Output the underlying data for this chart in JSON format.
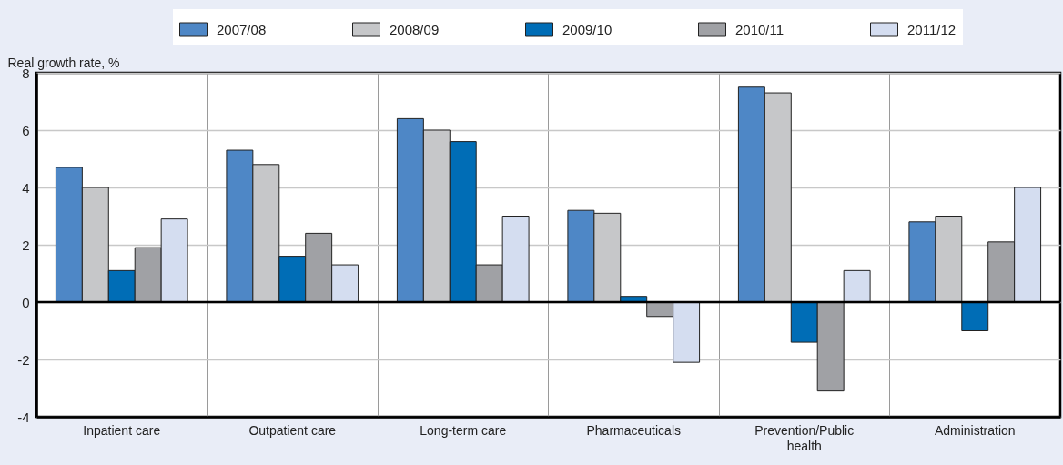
{
  "chart_data": {
    "type": "bar",
    "categories": [
      "Inpatient care",
      "Outpatient care",
      "Long-term care",
      "Pharmaceuticals",
      "Prevention/Public health",
      "Administration"
    ],
    "series": [
      {
        "name": "2007/08",
        "color": "#4e87c6",
        "values": [
          4.7,
          5.3,
          6.4,
          3.2,
          7.5,
          2.8
        ]
      },
      {
        "name": "2008/09",
        "color": "#c6c7c9",
        "values": [
          4.0,
          4.8,
          6.0,
          3.1,
          7.3,
          3.0
        ]
      },
      {
        "name": "2009/10",
        "color": "#006db6",
        "values": [
          1.1,
          1.6,
          5.6,
          0.2,
          -1.4,
          -1.0
        ]
      },
      {
        "name": "2010/11",
        "color": "#a0a1a5",
        "values": [
          1.9,
          2.4,
          1.3,
          -0.5,
          -3.1,
          2.1
        ]
      },
      {
        "name": "2011/12",
        "color": "#d4ddf0",
        "values": [
          2.9,
          1.3,
          3.0,
          -2.1,
          1.1,
          4.0
        ]
      }
    ],
    "ylabel": "Real growth rate, %",
    "ylim": [
      -4,
      8
    ],
    "yticks": [
      -4,
      -2,
      0,
      2,
      4,
      6,
      8
    ],
    "ref_lines": [
      {
        "axis": "y",
        "value": 0,
        "color": "#000000"
      }
    ],
    "grid": true,
    "legend": "top"
  }
}
